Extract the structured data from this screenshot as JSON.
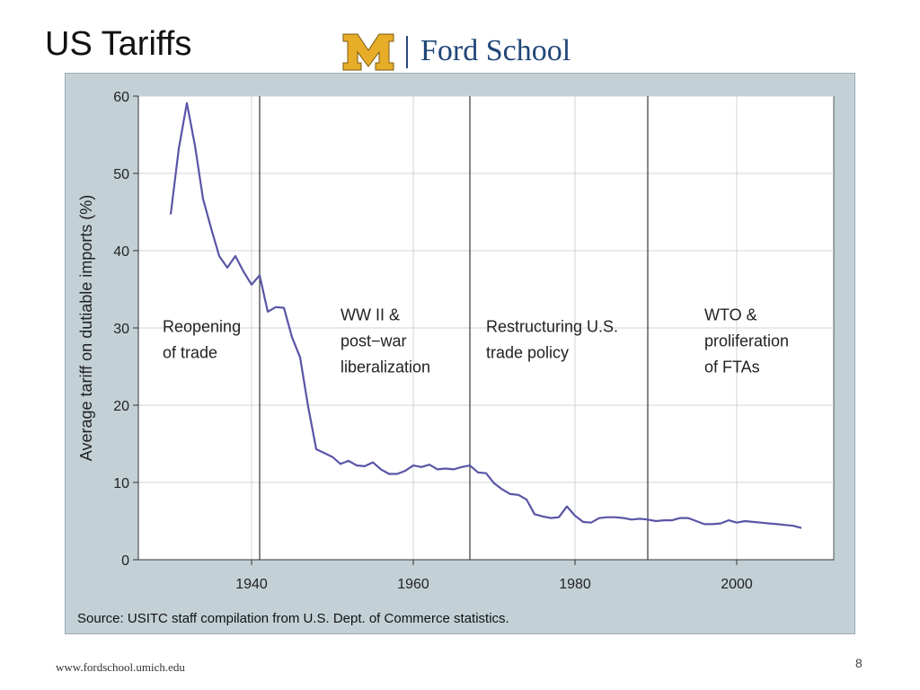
{
  "slide": {
    "title": "US Tariffs",
    "logo_text": "Ford School",
    "logo_mark": "M",
    "footer_url": "www.fordschool.umich.edu",
    "page_number": "8"
  },
  "colors": {
    "line": "#5a55a6",
    "plot_bg": "#ffffff",
    "frame_bg": "#c3d1d6",
    "logo_gold": "#e8ad28",
    "logo_blue": "#1f4677"
  },
  "chart_data": {
    "type": "line",
    "title": "",
    "xlabel": "",
    "ylabel": "Average tariff on dutiable imports (%)",
    "xlim": [
      1926,
      2012
    ],
    "ylim": [
      0,
      60
    ],
    "xticks": [
      1940,
      1960,
      1980,
      2000
    ],
    "yticks": [
      0,
      10,
      20,
      30,
      40,
      50,
      60
    ],
    "grid": true,
    "source": "Source: USITC staff compilation from U.S. Dept. of Commerce statistics.",
    "series": [
      {
        "name": "Average tariff",
        "x": [
          1930,
          1931,
          1932,
          1933,
          1934,
          1935,
          1936,
          1937,
          1938,
          1939,
          1940,
          1941,
          1942,
          1943,
          1944,
          1945,
          1946,
          1947,
          1948,
          1949,
          1950,
          1951,
          1952,
          1953,
          1954,
          1955,
          1956,
          1957,
          1958,
          1959,
          1960,
          1961,
          1962,
          1963,
          1964,
          1965,
          1966,
          1967,
          1968,
          1969,
          1970,
          1971,
          1972,
          1973,
          1974,
          1975,
          1976,
          1977,
          1978,
          1979,
          1980,
          1981,
          1982,
          1983,
          1984,
          1985,
          1986,
          1987,
          1988,
          1989,
          1990,
          1991,
          1992,
          1993,
          1994,
          1995,
          1996,
          1997,
          1998,
          1999,
          2000,
          2001,
          2002,
          2003,
          2004,
          2005,
          2006,
          2007,
          2008
        ],
        "values": [
          44.7,
          53.2,
          59.1,
          53.6,
          46.7,
          42.9,
          39.3,
          37.8,
          39.3,
          37.3,
          35.6,
          36.8,
          32.1,
          32.7,
          32.6,
          28.8,
          26.2,
          19.8,
          14.3,
          13.8,
          13.3,
          12.4,
          12.8,
          12.2,
          12.1,
          12.6,
          11.7,
          11.1,
          11.1,
          11.5,
          12.2,
          12.0,
          12.3,
          11.7,
          11.8,
          11.7,
          12.0,
          12.2,
          11.3,
          11.2,
          9.9,
          9.1,
          8.5,
          8.4,
          7.8,
          5.9,
          5.6,
          5.4,
          5.5,
          6.9,
          5.7,
          4.9,
          4.8,
          5.4,
          5.5,
          5.5,
          5.4,
          5.2,
          5.3,
          5.2,
          5.0,
          5.1,
          5.1,
          5.4,
          5.4,
          5.0,
          4.6,
          4.6,
          4.7,
          5.1,
          4.8,
          5.0,
          4.9,
          4.8,
          4.7,
          4.6,
          4.5,
          4.4,
          4.1
        ]
      }
    ],
    "vlines": [
      1941,
      1967,
      1989
    ],
    "annotations": [
      {
        "lines": [
          "Reopening",
          "of trade"
        ],
        "x": 1929,
        "y": 29.5
      },
      {
        "lines": [
          "WW II &",
          "post−war",
          "liberalization"
        ],
        "x": 1951,
        "y": 31.0
      },
      {
        "lines": [
          "Restructuring U.S.",
          "trade policy"
        ],
        "x": 1969,
        "y": 29.5
      },
      {
        "lines": [
          "WTO &",
          "proliferation",
          "of FTAs"
        ],
        "x": 1996,
        "y": 31.0
      }
    ]
  }
}
